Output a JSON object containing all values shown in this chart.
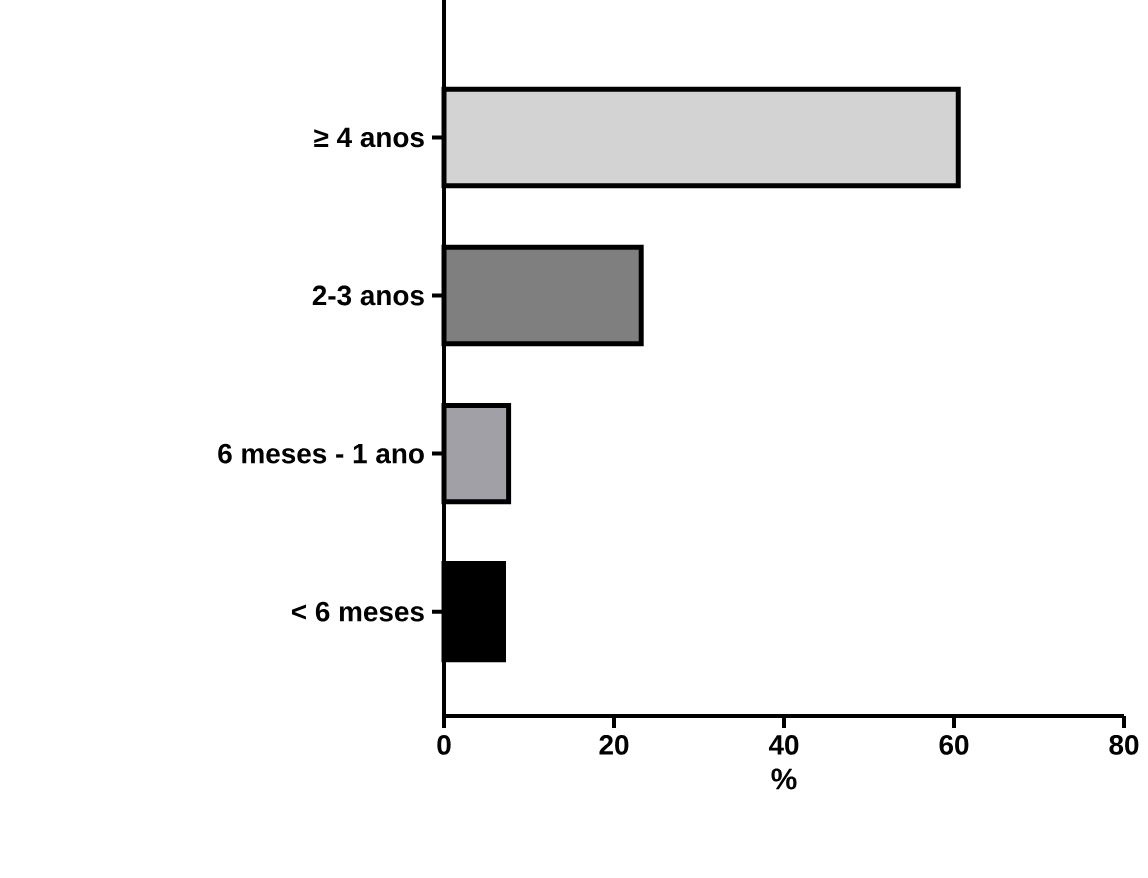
{
  "chart_data": {
    "type": "bar",
    "orientation": "horizontal",
    "xlabel": "%",
    "categories": [
      "≥ 4 anos",
      "2-3 anos",
      "6 meses - 1 ano",
      "< 6 meses"
    ],
    "values": [
      60.5,
      23.2,
      7.6,
      7.0
    ],
    "colors": [
      "#d3d3d3",
      "#7f7f7f",
      "#a0a0a6",
      "#000000"
    ],
    "xlim": [
      0,
      80
    ],
    "xticks": [
      0,
      20,
      40,
      60,
      80
    ]
  }
}
